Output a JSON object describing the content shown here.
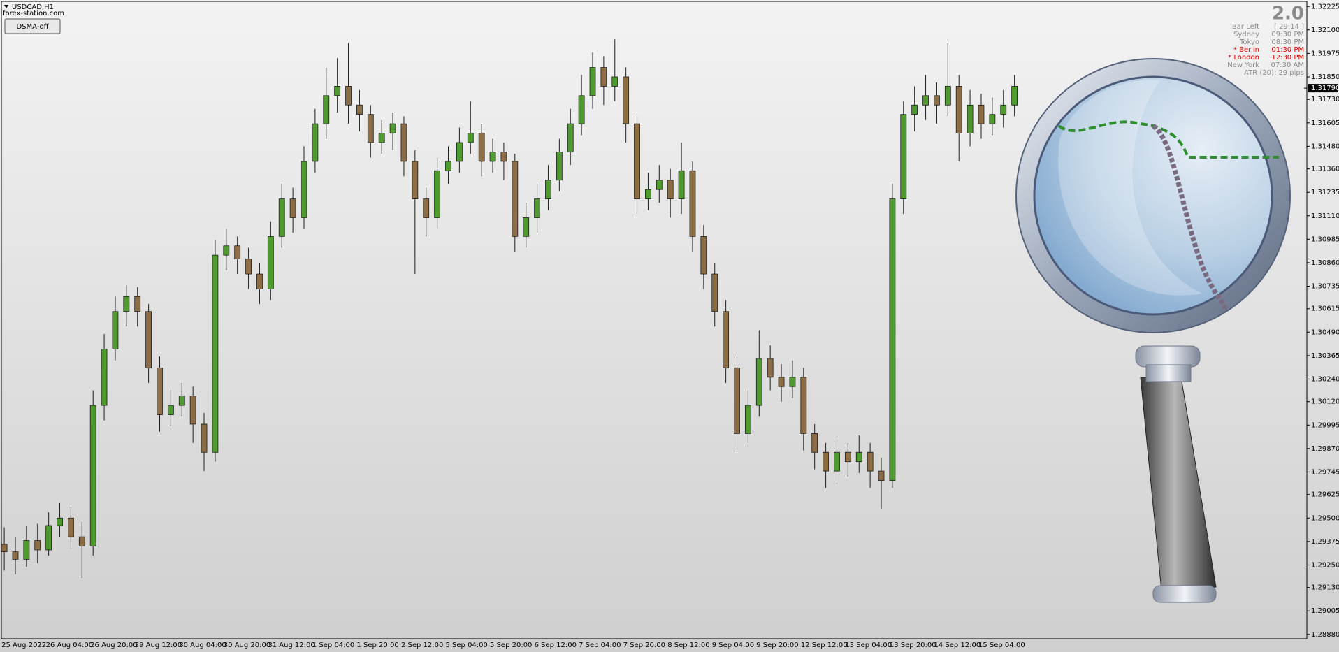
{
  "chart_data": {
    "type": "candlestick",
    "title": "USDCAD,H1",
    "subtitle": "forex-station.com",
    "up_color": "#4e9a2e",
    "down_color": "#8c6d45",
    "categories": [
      "25 Aug 2022",
      null,
      null,
      null,
      "26 Aug 04:00",
      null,
      null,
      null,
      "26 Aug 20:00",
      null,
      null,
      null,
      "29 Aug 12:00",
      null,
      null,
      null,
      "30 Aug 04:00",
      null,
      null,
      null,
      "30 Aug 20:00",
      null,
      null,
      null,
      "31 Aug 12:00",
      null,
      null,
      null,
      "1 Sep 04:00",
      null,
      null,
      null,
      "1 Sep 20:00",
      null,
      null,
      null,
      "2 Sep 12:00",
      null,
      null,
      null,
      "5 Sep 04:00",
      null,
      null,
      null,
      "5 Sep 20:00",
      null,
      null,
      null,
      "6 Sep 12:00",
      null,
      null,
      null,
      "7 Sep 04:00",
      null,
      null,
      null,
      "7 Sep 20:00",
      null,
      null,
      null,
      "8 Sep 12:00",
      null,
      null,
      null,
      "9 Sep 04:00",
      null,
      null,
      null,
      "9 Sep 20:00",
      null,
      null,
      null,
      "12 Sep 12:00",
      null,
      null,
      null,
      "13 Sep 04:00",
      null,
      null,
      null,
      "13 Sep 20:00",
      null,
      null,
      null,
      "14 Sep 12:00",
      null,
      null,
      null,
      "15 Sep 04:00",
      null,
      null,
      null
    ],
    "open": [
      1.2936,
      1.2932,
      1.2928,
      1.2938,
      1.2933,
      1.2946,
      1.295,
      1.294,
      1.2935,
      1.301,
      1.304,
      1.306,
      1.3068,
      1.306,
      1.303,
      1.3005,
      1.301,
      1.3015,
      1.3,
      1.2985,
      1.309,
      1.3095,
      1.3088,
      1.308,
      1.3072,
      1.31,
      1.312,
      1.311,
      1.314,
      1.316,
      1.3175,
      1.318,
      1.317,
      1.3165,
      1.315,
      1.3155,
      1.316,
      1.314,
      1.312,
      1.311,
      1.3135,
      1.314,
      1.315,
      1.3155,
      1.314,
      1.3145,
      1.314,
      1.31,
      1.311,
      1.312,
      1.313,
      1.3145,
      1.316,
      1.3175,
      1.319,
      1.318,
      1.3185,
      1.316,
      1.312,
      1.3125,
      1.313,
      1.312,
      1.3135,
      1.31,
      1.308,
      1.306,
      1.303,
      1.2995,
      1.301,
      1.3035,
      1.3025,
      1.302,
      1.3025,
      1.2995,
      1.2985,
      1.2975,
      1.2985,
      1.298,
      1.2985,
      1.2975,
      1.297,
      1.312,
      1.3165,
      1.317,
      1.3175,
      1.317,
      1.318,
      1.3155,
      1.317,
      1.316,
      1.3165,
      1.317
    ],
    "high": [
      1.2945,
      1.294,
      1.2946,
      1.2947,
      1.2953,
      1.2958,
      1.2956,
      1.2948,
      1.3018,
      1.3048,
      1.3068,
      1.3074,
      1.3073,
      1.3064,
      1.3036,
      1.3018,
      1.3022,
      1.302,
      1.3006,
      1.3098,
      1.3104,
      1.31,
      1.3094,
      1.3086,
      1.3108,
      1.3128,
      1.3126,
      1.3148,
      1.3168,
      1.319,
      1.3195,
      1.3203,
      1.3178,
      1.317,
      1.3162,
      1.3166,
      1.3164,
      1.3146,
      1.3126,
      1.3142,
      1.3148,
      1.3158,
      1.3172,
      1.316,
      1.3152,
      1.315,
      1.3144,
      1.3118,
      1.3128,
      1.3138,
      1.3152,
      1.3168,
      1.3186,
      1.3198,
      1.3196,
      1.3205,
      1.319,
      1.3164,
      1.3134,
      1.3138,
      1.3136,
      1.315,
      1.314,
      1.3106,
      1.3086,
      1.3066,
      1.3036,
      1.3018,
      1.305,
      1.3042,
      1.3032,
      1.3034,
      1.303,
      1.3,
      1.299,
      1.2992,
      1.299,
      1.2994,
      1.299,
      1.2982,
      1.3128,
      1.3172,
      1.318,
      1.3186,
      1.3182,
      1.3203,
      1.3186,
      1.3178,
      1.3176,
      1.3174,
      1.3178,
      1.3186
    ],
    "low": [
      1.2922,
      1.292,
      1.2924,
      1.2926,
      1.293,
      1.294,
      1.2934,
      1.2918,
      1.293,
      1.3002,
      1.3034,
      1.3052,
      1.3052,
      1.3022,
      1.2996,
      1.2999,
      1.3004,
      1.299,
      1.2975,
      1.298,
      1.3082,
      1.308,
      1.3072,
      1.3064,
      1.3066,
      1.3094,
      1.3102,
      1.3104,
      1.3134,
      1.3152,
      1.3166,
      1.316,
      1.3156,
      1.3142,
      1.3144,
      1.3146,
      1.3132,
      1.308,
      1.31,
      1.3104,
      1.3128,
      1.3134,
      1.3144,
      1.3132,
      1.3134,
      1.313,
      1.3092,
      1.3094,
      1.3102,
      1.3114,
      1.3124,
      1.3138,
      1.3154,
      1.3168,
      1.317,
      1.3172,
      1.315,
      1.3112,
      1.3114,
      1.3118,
      1.311,
      1.3112,
      1.3092,
      1.3072,
      1.3052,
      1.3022,
      1.2985,
      1.299,
      1.3004,
      1.3018,
      1.3012,
      1.3014,
      1.2986,
      1.2976,
      1.2966,
      1.2968,
      1.2972,
      1.2974,
      1.2966,
      1.2955,
      1.2966,
      1.3112,
      1.3156,
      1.3162,
      1.316,
      1.3164,
      1.314,
      1.3148,
      1.3152,
      1.3154,
      1.3158,
      1.3164
    ],
    "close": [
      1.2932,
      1.2928,
      1.2938,
      1.2933,
      1.2946,
      1.295,
      1.294,
      1.2935,
      1.301,
      1.304,
      1.306,
      1.3068,
      1.306,
      1.303,
      1.3005,
      1.301,
      1.3015,
      1.3,
      1.2985,
      1.309,
      1.3095,
      1.3088,
      1.308,
      1.3072,
      1.31,
      1.312,
      1.311,
      1.314,
      1.316,
      1.3175,
      1.318,
      1.317,
      1.3165,
      1.315,
      1.3155,
      1.316,
      1.314,
      1.312,
      1.311,
      1.3135,
      1.314,
      1.315,
      1.3155,
      1.314,
      1.3145,
      1.314,
      1.31,
      1.311,
      1.312,
      1.313,
      1.3145,
      1.316,
      1.3175,
      1.319,
      1.318,
      1.3185,
      1.316,
      1.312,
      1.3125,
      1.313,
      1.312,
      1.3135,
      1.31,
      1.308,
      1.306,
      1.303,
      1.2995,
      1.301,
      1.3035,
      1.3025,
      1.302,
      1.3025,
      1.2995,
      1.2985,
      1.2975,
      1.2985,
      1.298,
      1.2985,
      1.2975,
      1.297,
      1.312,
      1.3165,
      1.317,
      1.3175,
      1.317,
      1.318,
      1.3155,
      1.317,
      1.316,
      1.3165,
      1.317,
      1.318
    ],
    "current_price": {
      "value": 1.3179,
      "label": "1.31790"
    },
    "ylim": [
      1.28857,
      1.32252
    ],
    "yticks": [
      1.32225,
      {
        "value": 1.321,
        "label": "1.32100"
      },
      1.31975,
      {
        "value": 1.3185,
        "label": "1.31850"
      },
      {
        "value": 1.3173,
        "label": "1.31730"
      },
      1.31605,
      {
        "value": 1.3148,
        "label": "1.31480"
      },
      {
        "value": 1.3136,
        "label": "1.31360"
      },
      1.31235,
      {
        "value": 1.3111,
        "label": "1.31110"
      },
      1.30985,
      {
        "value": 1.3086,
        "label": "1.30860"
      },
      1.30735,
      1.30615,
      {
        "value": 1.3049,
        "label": "1.30490"
      },
      1.30365,
      {
        "value": 1.3024,
        "label": "1.30240"
      },
      {
        "value": 1.3012,
        "label": "1.30120"
      },
      1.29995,
      {
        "value": 1.2987,
        "label": "1.29870"
      },
      1.29745,
      1.29625,
      {
        "value": 1.295,
        "label": "1.29500"
      },
      1.29375,
      {
        "value": 1.2925,
        "label": "1.29250"
      },
      {
        "value": 1.2913,
        "label": "1.29130"
      },
      1.29005,
      {
        "value": 1.2888,
        "label": "1.28880"
      }
    ],
    "grid": false
  },
  "ui": {
    "button": "DSMA-off",
    "version": "2.0",
    "info": [
      [
        "Bar Left",
        "[ 29:14 ]"
      ],
      [
        "Sydney",
        "09:30 PM"
      ],
      [
        "Tokyo",
        "08:30 PM"
      ],
      [
        "* Berlin",
        "01:30 PM"
      ],
      [
        "* London",
        "12:30 PM"
      ],
      [
        "New York",
        "07:30 AM"
      ]
    ],
    "highlight_color": "#e00000",
    "atr": "ATR (20): 29 pips"
  }
}
